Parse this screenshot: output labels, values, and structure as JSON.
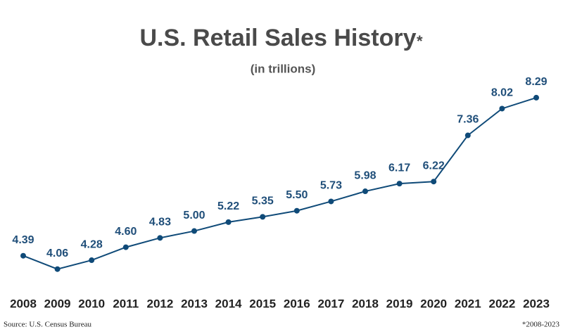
{
  "chart_data": {
    "type": "line",
    "title": "U.S. Retail Sales History",
    "title_mark": "*",
    "subtitle": "(in trillions)",
    "source": "Source: U.S. Census Bureau",
    "note": "*2008-2023",
    "categories": [
      "2008",
      "2009",
      "2010",
      "2011",
      "2012",
      "2013",
      "2014",
      "2015",
      "2016",
      "2017",
      "2018",
      "2019",
      "2020",
      "2021",
      "2022",
      "2023"
    ],
    "series": [
      {
        "name": "Retail Sales",
        "color": "#0f4a78",
        "values": [
          4.39,
          4.06,
          4.28,
          4.6,
          4.83,
          5.0,
          5.22,
          5.35,
          5.5,
          5.73,
          5.98,
          6.17,
          6.22,
          7.36,
          8.02,
          8.29
        ],
        "value_labels": [
          "4.39",
          "4.06",
          "4.28",
          "4.60",
          "4.83",
          "5.00",
          "5.22",
          "5.35",
          "5.50",
          "5.73",
          "5.98",
          "6.17",
          "6.22",
          "7.36",
          "8.02",
          "8.29"
        ]
      }
    ],
    "ylim": [
      3.5,
      9
    ]
  }
}
